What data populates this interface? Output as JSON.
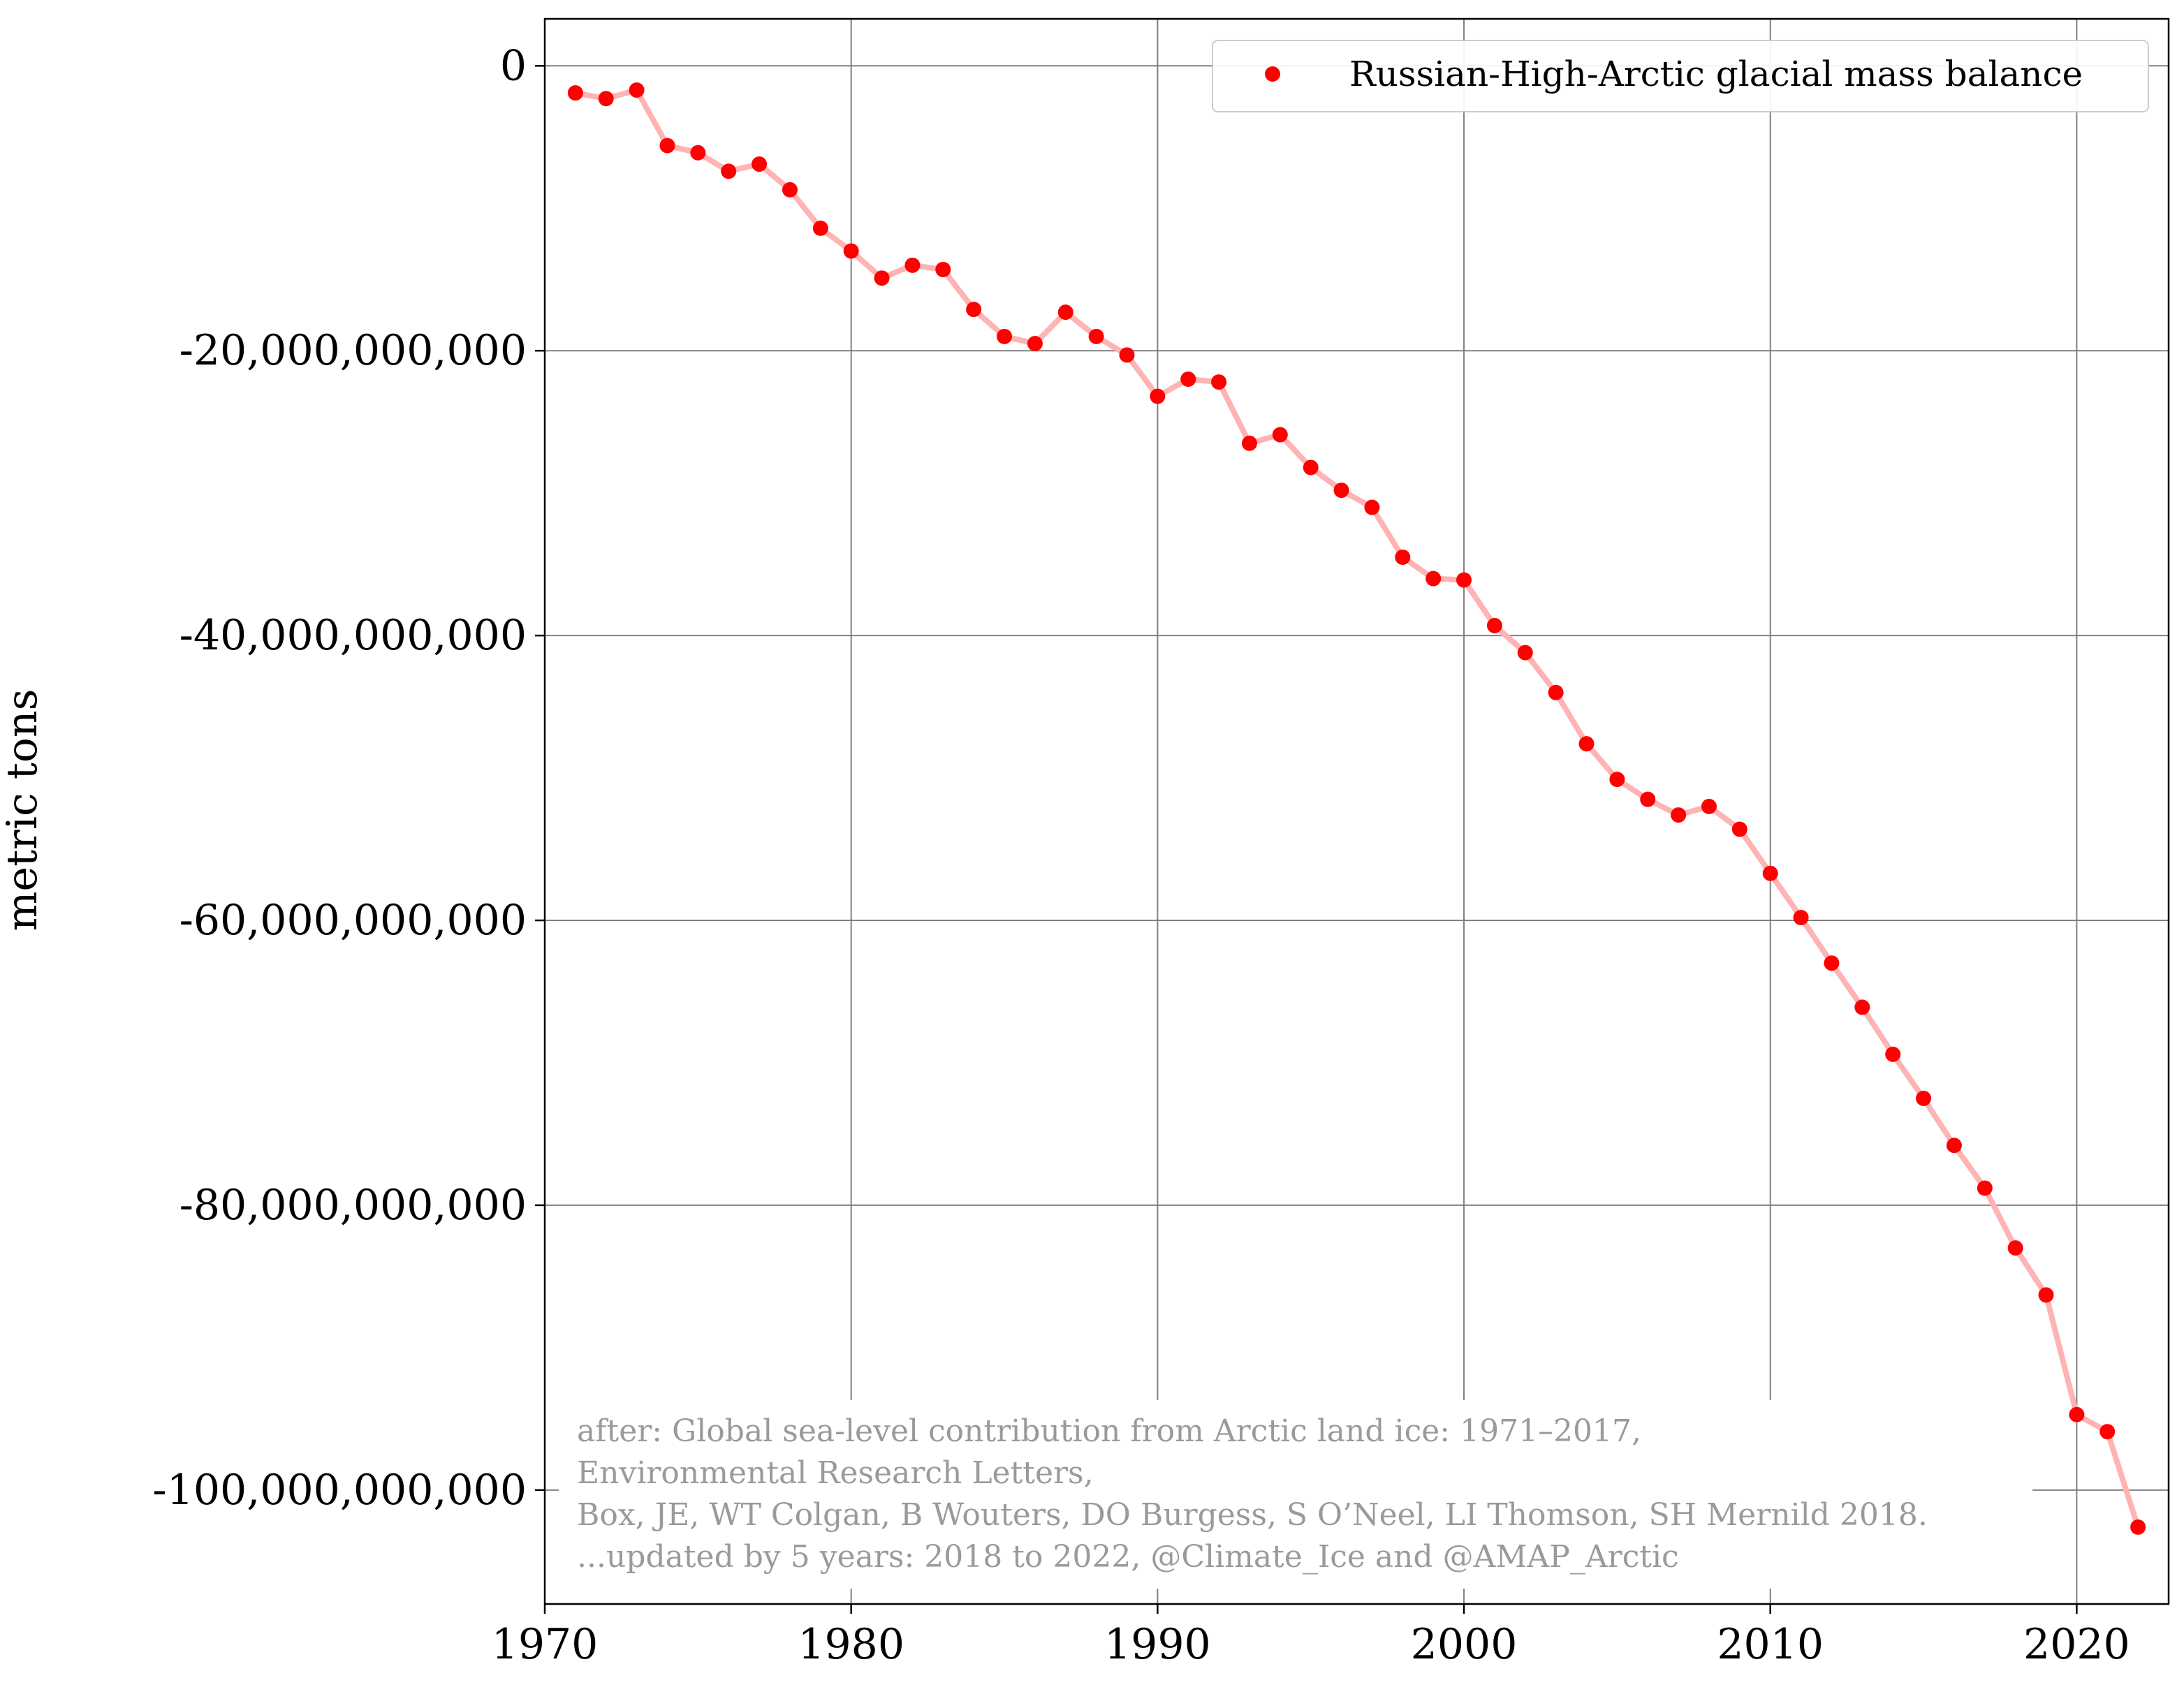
{
  "chart_data": {
    "type": "line",
    "xlabel": "",
    "ylabel": "metric tons",
    "xlim": [
      1970,
      2023
    ],
    "ylim": [
      -108000000000,
      3300000000
    ],
    "xticks": [
      1970,
      1980,
      1990,
      2000,
      2010,
      2020
    ],
    "yticks": [
      0,
      -20000000000,
      -40000000000,
      -60000000000,
      -80000000000,
      -100000000000
    ],
    "xtick_labels": [
      "1970",
      "1980",
      "1990",
      "2000",
      "2010",
      "2020"
    ],
    "ytick_labels": [
      "0",
      "-20,000,000,000",
      "-40,000,000,000",
      "-60,000,000,000",
      "-80,000,000,000",
      "-100,000,000,000"
    ],
    "grid": true,
    "legend_position": "top-right",
    "marker_color": "#ff0000",
    "line_color": "#ffb3b3",
    "series": [
      {
        "name": "Russian-High-Arctic glacial mass balance",
        "x": [
          1971,
          1972,
          1973,
          1974,
          1975,
          1976,
          1977,
          1978,
          1979,
          1980,
          1981,
          1982,
          1983,
          1984,
          1985,
          1986,
          1987,
          1988,
          1989,
          1990,
          1991,
          1992,
          1993,
          1994,
          1995,
          1996,
          1997,
          1998,
          1999,
          2000,
          2001,
          2002,
          2003,
          2004,
          2005,
          2006,
          2007,
          2008,
          2009,
          2010,
          2011,
          2012,
          2013,
          2014,
          2015,
          2016,
          2017,
          2018,
          2019,
          2020,
          2021,
          2022
        ],
        "y": [
          -1900000000,
          -2300000000,
          -1700000000,
          -5600000000,
          -6100000000,
          -7400000000,
          -6900000000,
          -8700000000,
          -11400000000,
          -13000000000,
          -14900000000,
          -14000000000,
          -14300000000,
          -17100000000,
          -19000000000,
          -19500000000,
          -17300000000,
          -19000000000,
          -20300000000,
          -23200000000,
          -22000000000,
          -22200000000,
          -26500000000,
          -25900000000,
          -28200000000,
          -29800000000,
          -31000000000,
          -34500000000,
          -36000000000,
          -36100000000,
          -39300000000,
          -41200000000,
          -44000000000,
          -47600000000,
          -50100000000,
          -51500000000,
          -52600000000,
          -52000000000,
          -53600000000,
          -56700000000,
          -59800000000,
          -63000000000,
          -66100000000,
          -69400000000,
          -72500000000,
          -75800000000,
          -78800000000,
          -83000000000,
          -86300000000,
          -94700000000,
          -95900000000,
          -102600000000
        ]
      }
    ],
    "annotation_lines": [
      "after: Global sea-level contribution from Arctic land ice: 1971–2017,",
      "Environmental Research Letters,",
      "Box, JE, WT Colgan, B Wouters, DO Burgess, S O’Neel, LI Thomson, SH Mernild 2018.",
      "...updated by 5 years: 2018 to 2022, @Climate_Ice and @AMAP_Arctic"
    ]
  }
}
